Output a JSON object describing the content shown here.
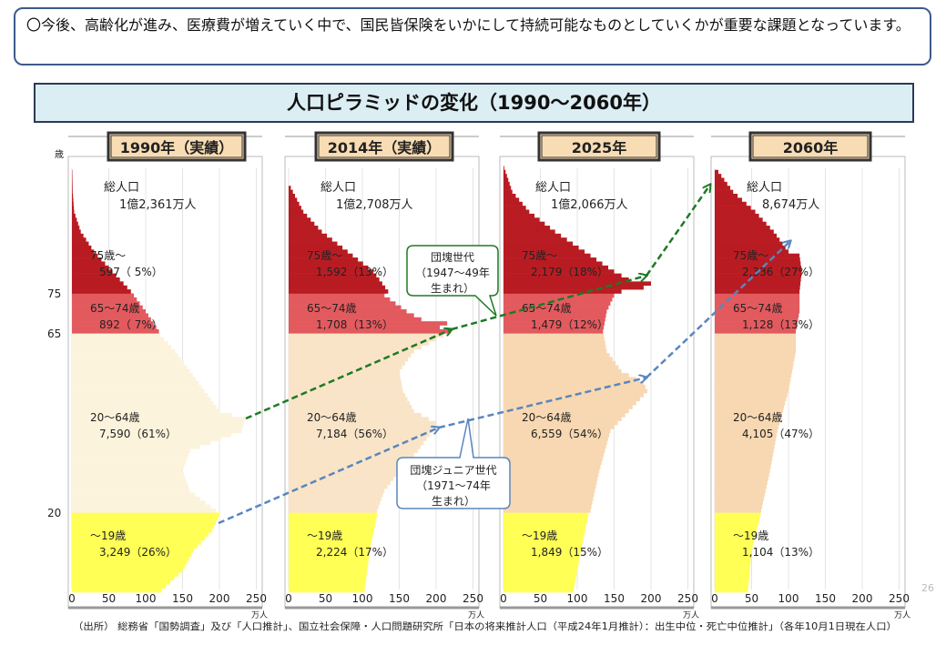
{
  "note": "〇今後、高齢化が進み、医療費が増えていく中で、国民皆保険をいかにして持続可能なものとしていくかが重要な課題となっています。",
  "title": "人口ピラミッドの変化（1990〜2060年）",
  "source": "（出所） 総務省「国勢調査」及び「人口推計」、国立社会保障・人口問題研究所「日本の将来推計人口（平成24年1月推計）：出生中位・死亡中位推計」（各年10月1日現在人口）",
  "page_number": "26",
  "chart_data": {
    "type": "bar",
    "orientation": "horizontal",
    "y_axis_label": "歳",
    "y_ticks": [
      "75",
      "65",
      "20"
    ],
    "x_ticks": [
      "0",
      "50",
      "100",
      "150",
      "200",
      "250"
    ],
    "x_unit": "万人",
    "xlim": [
      0,
      250
    ],
    "colors": {
      "age75plus": "#b81c22",
      "age65_74": "#e25a5e",
      "age20_64_1990": "#fcf3dc",
      "age20_64_2014": "#f9e4c8",
      "age20_64_later": "#f8d8b2",
      "age0_19": "#ffff55",
      "baby_boom_arrow": "#1e7a24",
      "junior_arrow": "#5a86bd"
    },
    "panels": [
      {
        "year": "1990年（実績）",
        "total_label": "総人口",
        "total": "1億2,361万人",
        "groups": [
          {
            "label": "75歳〜",
            "value": "597（ 5%）"
          },
          {
            "label": "65〜74歳",
            "value": "892（ 7%）"
          },
          {
            "label": "20〜64歳",
            "value": "7,590（61%）"
          },
          {
            "label": "〜19歳",
            "value": "3,249（26%）"
          }
        ],
        "profile": [
          [
            0,
            122
          ],
          [
            5,
            150
          ],
          [
            10,
            165
          ],
          [
            15,
            190
          ],
          [
            19,
            200
          ],
          [
            20,
            195
          ],
          [
            25,
            160
          ],
          [
            30,
            150
          ],
          [
            35,
            160
          ],
          [
            40,
            230
          ],
          [
            43,
            235
          ],
          [
            45,
            200
          ],
          [
            50,
            180
          ],
          [
            55,
            160
          ],
          [
            60,
            140
          ],
          [
            64,
            120
          ],
          [
            65,
            118
          ],
          [
            70,
            100
          ],
          [
            75,
            80
          ],
          [
            80,
            55
          ],
          [
            85,
            30
          ],
          [
            90,
            12
          ],
          [
            95,
            3
          ],
          [
            100,
            1
          ],
          [
            105,
            0.5
          ]
        ]
      },
      {
        "year": "2014年（実績）",
        "total_label": "総人口",
        "total": "1億2,708万人",
        "groups": [
          {
            "label": "75歳〜",
            "value": "1,592（13%）"
          },
          {
            "label": "65〜74歳",
            "value": "1,708（13%）"
          },
          {
            "label": "20〜64歳",
            "value": "7,184（56%）"
          },
          {
            "label": "〜19歳",
            "value": "2,224（17%）"
          }
        ],
        "profile": [
          [
            0,
            103
          ],
          [
            10,
            110
          ],
          [
            19,
            120
          ],
          [
            20,
            120
          ],
          [
            25,
            130
          ],
          [
            30,
            150
          ],
          [
            35,
            175
          ],
          [
            40,
            195
          ],
          [
            42,
            200
          ],
          [
            45,
            170
          ],
          [
            50,
            155
          ],
          [
            55,
            150
          ],
          [
            60,
            170
          ],
          [
            64,
            210
          ],
          [
            65,
            220
          ],
          [
            66,
            205
          ],
          [
            67,
            215
          ],
          [
            68,
            180
          ],
          [
            70,
            160
          ],
          [
            74,
            130
          ],
          [
            75,
            135
          ],
          [
            80,
            115
          ],
          [
            85,
            80
          ],
          [
            90,
            45
          ],
          [
            95,
            20
          ],
          [
            101,
            3
          ]
        ]
      },
      {
        "year": "2025年",
        "total_label": "総人口",
        "total": "1億2,066万人",
        "groups": [
          {
            "label": "75歳〜",
            "value": "2,179（18%）"
          },
          {
            "label": "65〜74歳",
            "value": "1,479（12%）"
          },
          {
            "label": "20〜64歳",
            "value": "6,559（54%）"
          },
          {
            "label": "〜19歳",
            "value": "1,849（15%）"
          }
        ],
        "profile": [
          [
            0,
            95
          ],
          [
            10,
            105
          ],
          [
            19,
            115
          ],
          [
            20,
            118
          ],
          [
            30,
            130
          ],
          [
            40,
            145
          ],
          [
            45,
            170
          ],
          [
            50,
            195
          ],
          [
            52,
            190
          ],
          [
            55,
            160
          ],
          [
            60,
            140
          ],
          [
            65,
            135
          ],
          [
            70,
            140
          ],
          [
            74,
            150
          ],
          [
            75,
            160
          ],
          [
            76,
            190
          ],
          [
            77,
            200
          ],
          [
            78,
            170
          ],
          [
            80,
            150
          ],
          [
            85,
            110
          ],
          [
            90,
            70
          ],
          [
            95,
            35
          ],
          [
            100,
            12
          ],
          [
            106,
            1
          ]
        ]
      },
      {
        "year": "2060年",
        "total_label": "総人口",
        "total": "8,674万人",
        "groups": [
          {
            "label": "75歳〜",
            "value": "2,336（27%）"
          },
          {
            "label": "65〜74歳",
            "value": "1,128（13%）"
          },
          {
            "label": "20〜64歳",
            "value": "4,105（47%）"
          },
          {
            "label": "〜19歳",
            "value": "1,104（13%）"
          }
        ],
        "profile": [
          [
            0,
            45
          ],
          [
            10,
            50
          ],
          [
            19,
            62
          ],
          [
            20,
            63
          ],
          [
            30,
            75
          ],
          [
            40,
            85
          ],
          [
            50,
            100
          ],
          [
            60,
            110
          ],
          [
            65,
            110
          ],
          [
            70,
            115
          ],
          [
            75,
            115
          ],
          [
            80,
            118
          ],
          [
            84,
            115
          ],
          [
            85,
            100
          ],
          [
            90,
            80
          ],
          [
            95,
            55
          ],
          [
            100,
            25
          ],
          [
            105,
            5
          ]
        ]
      }
    ],
    "callouts": [
      {
        "name": "baby-boom",
        "lines": [
          "団塊世代",
          "（1947〜49年",
          "生まれ）"
        ]
      },
      {
        "name": "junior",
        "lines": [
          "団塊ジュニア世代",
          "（1971〜74年",
          "生まれ）"
        ]
      }
    ]
  }
}
